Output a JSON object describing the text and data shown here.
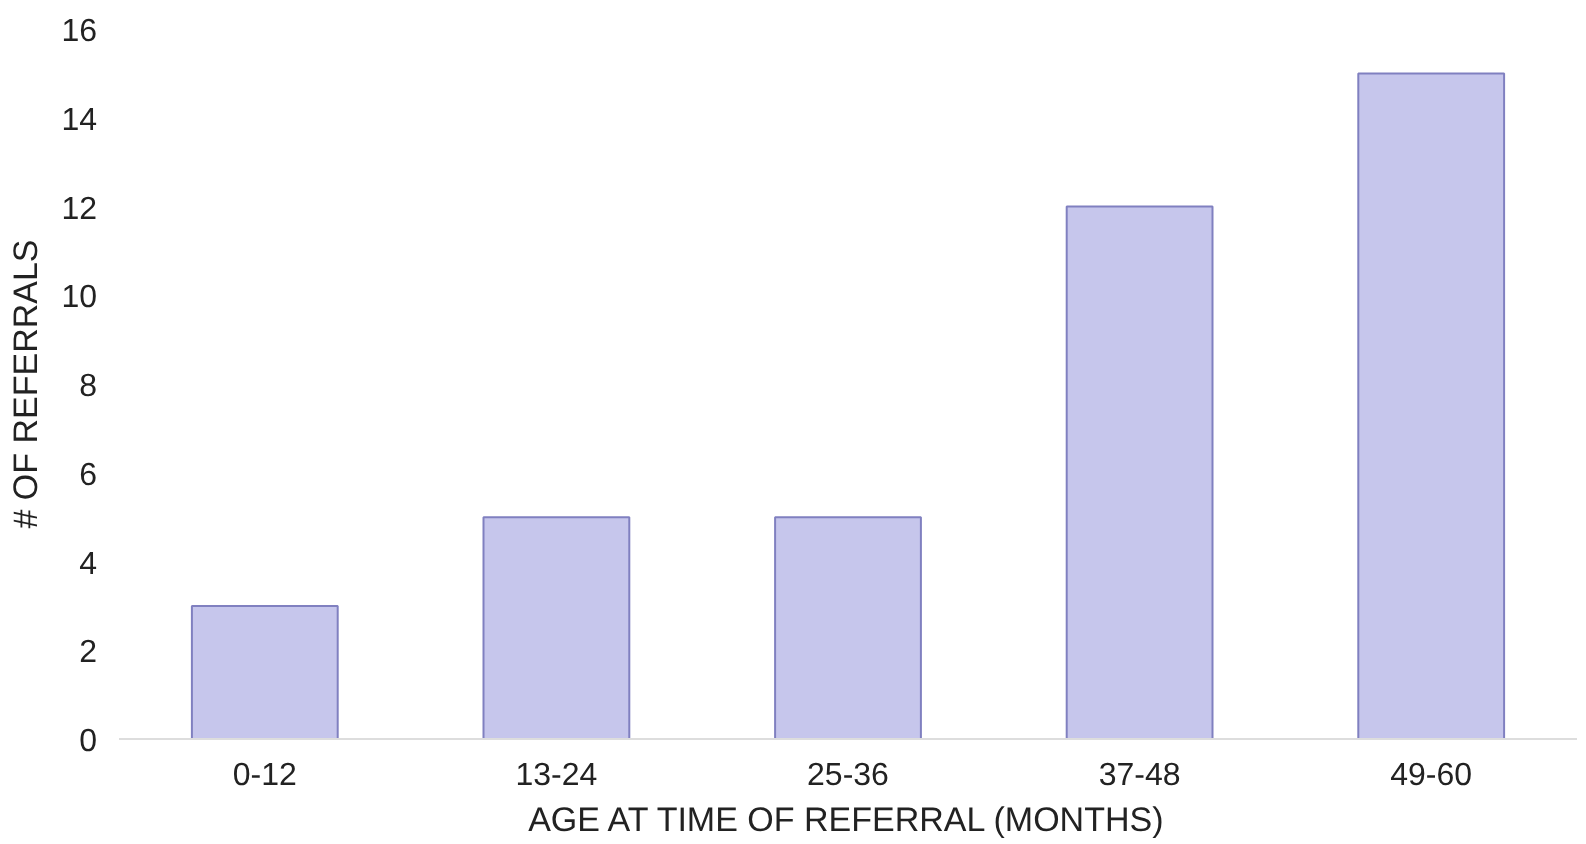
{
  "chart_data": {
    "type": "bar",
    "xlabel": "AGE AT TIME OF REFERRAL (MONTHS)",
    "ylabel": "# OF REFERRALS",
    "categories": [
      "0-12",
      "13-24",
      "25-36",
      "37-48",
      "49-60"
    ],
    "values": [
      3,
      5,
      5,
      12,
      15
    ],
    "color": "#c6c6ec",
    "ylim": [
      0,
      16
    ],
    "yticks": [
      0,
      2,
      4,
      6,
      8,
      10,
      12,
      14,
      16
    ],
    "grid": false
  }
}
